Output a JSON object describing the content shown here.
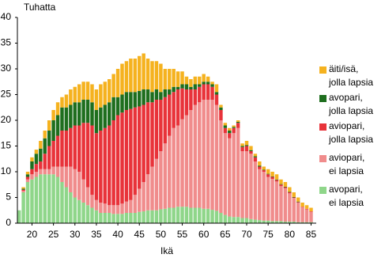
{
  "chart_data": {
    "type": "stacked_bar",
    "title": "Tuhatta",
    "x_label": "Ikä",
    "x": [
      17,
      18,
      19,
      20,
      21,
      22,
      23,
      24,
      25,
      26,
      27,
      28,
      29,
      30,
      31,
      32,
      33,
      34,
      35,
      36,
      37,
      38,
      39,
      40,
      41,
      42,
      43,
      44,
      45,
      46,
      47,
      48,
      49,
      50,
      51,
      52,
      53,
      54,
      55,
      56,
      57,
      58,
      59,
      60,
      61,
      62,
      63,
      64,
      65,
      66,
      67,
      68,
      69,
      70,
      71,
      72,
      73,
      74,
      75,
      76,
      77,
      78,
      79,
      80,
      81,
      82,
      83,
      84,
      85
    ],
    "xlim": [
      16.6,
      86.2
    ],
    "xticks": [
      20,
      25,
      30,
      35,
      40,
      45,
      50,
      55,
      60,
      65,
      70,
      75,
      80,
      85
    ],
    "ylim": [
      0,
      40
    ],
    "yticks": [
      0,
      5,
      10,
      15,
      20,
      25,
      30,
      35,
      40
    ],
    "grid": false,
    "legend": "right",
    "series": [
      {
        "name": "avopari,\nei lapsia",
        "color": "#8fd68a",
        "values": [
          2.5,
          6,
          8,
          8.5,
          9,
          9.5,
          9.5,
          9.5,
          9.5,
          9,
          8,
          7,
          6,
          5,
          4.5,
          4,
          3.5,
          3,
          2.5,
          2,
          2,
          2,
          1.8,
          1.8,
          1.8,
          2,
          2,
          2,
          2.2,
          2.3,
          2.5,
          2.5,
          2.5,
          2.7,
          2.8,
          3,
          3,
          3.2,
          3.2,
          3.2,
          3,
          3,
          3,
          2.8,
          2.8,
          2.6,
          2.4,
          2,
          1.6,
          1.3,
          1.2,
          1.2,
          1,
          1,
          0.8,
          0.7,
          0.6,
          0.5,
          0.5,
          0.4,
          0.4,
          0.4,
          0.3,
          0.3,
          0.3,
          0.2,
          0.2,
          0.2,
          0.2
        ]
      },
      {
        "name": "aviopari,\nei lapsia",
        "color": "#f08c8c",
        "values": [
          0,
          0.3,
          0.5,
          1,
          1,
          1,
          1,
          1,
          1.5,
          2,
          3,
          4,
          5,
          5.5,
          5.5,
          4.5,
          3.5,
          2.5,
          2,
          2,
          1.8,
          1.5,
          1.7,
          1.7,
          2,
          2.2,
          2.5,
          3.5,
          4.5,
          5.7,
          7,
          8.5,
          10,
          11.3,
          12.7,
          14,
          15.5,
          15.8,
          17,
          17.8,
          19,
          20,
          20.5,
          21.2,
          21.2,
          21.4,
          20.6,
          18,
          15.9,
          15.2,
          16.3,
          17.3,
          13,
          13,
          12.7,
          11.3,
          9.9,
          9.5,
          8.5,
          8.2,
          7.7,
          6.8,
          6.5,
          5.5,
          4.6,
          3.8,
          2.9,
          2.5,
          2
        ]
      },
      {
        "name": "aviopari,\njolla lapsia",
        "color": "#e8333a",
        "values": [
          0,
          0.2,
          0.5,
          1,
          1.5,
          1.5,
          3,
          4.5,
          5,
          6,
          7,
          7,
          7.5,
          8.5,
          9,
          11,
          12.5,
          13.5,
          13,
          14,
          14.7,
          15.5,
          16.5,
          17.5,
          17.7,
          17.8,
          17.7,
          17,
          16,
          15,
          14,
          12.5,
          11.5,
          10,
          9,
          8,
          7,
          7,
          6,
          5,
          4,
          3,
          3,
          3,
          3,
          2.5,
          2,
          2,
          1,
          1,
          1,
          1,
          0.8,
          1,
          0.5,
          0.8,
          0.5,
          0.3,
          0.5,
          0.4,
          0.3,
          0.3,
          0.2,
          0.2,
          0.1,
          0.1,
          0.1,
          0.1,
          0.1
        ]
      },
      {
        "name": "avopari,\njolla lapsia",
        "color": "#1e6e1e",
        "values": [
          0,
          0.2,
          0.5,
          1.5,
          2,
          2.5,
          3,
          3,
          4,
          4,
          4.5,
          4.5,
          4.5,
          4.5,
          4.5,
          4.5,
          4.5,
          4.5,
          4.5,
          4.5,
          4.5,
          4.5,
          4.5,
          3.5,
          3.5,
          3.5,
          3.3,
          3,
          3,
          3,
          2.5,
          2,
          2,
          1.5,
          1.5,
          1,
          1,
          0.5,
          0.8,
          1,
          0.5,
          1,
          0.5,
          0.5,
          0.5,
          0.5,
          0.5,
          0.5,
          0.5,
          0.5,
          0.2,
          0.2,
          0.2,
          0.2,
          0.2,
          0.2,
          0.2,
          0.1,
          0.1,
          0.1,
          0.1,
          0.1,
          0.1,
          0.1,
          0.1,
          0.1,
          0,
          0,
          0
        ]
      },
      {
        "name": "äiti/isä,\njolla lapsia",
        "color": "#f5b21f",
        "values": [
          0,
          0.3,
          0.5,
          0.8,
          0.8,
          1.5,
          1.5,
          2,
          2,
          2.5,
          2,
          2.5,
          3,
          3,
          3.5,
          3.5,
          3.5,
          3.5,
          4,
          4.5,
          4.5,
          4.5,
          4.5,
          5.5,
          6,
          6,
          6.5,
          6.5,
          6.8,
          7,
          6,
          6,
          5.5,
          5.5,
          4,
          4,
          3.5,
          3,
          2.5,
          1.5,
          1.5,
          1.5,
          1.5,
          1.5,
          1,
          0.5,
          1.5,
          0.5,
          0.5,
          0.5,
          0.3,
          0.3,
          0.5,
          0.8,
          0.8,
          0.5,
          0.8,
          0.6,
          0.9,
          0.9,
          1,
          0.9,
          0.9,
          0.9,
          0.9,
          0.8,
          0.8,
          0.7,
          0.7
        ]
      }
    ]
  }
}
